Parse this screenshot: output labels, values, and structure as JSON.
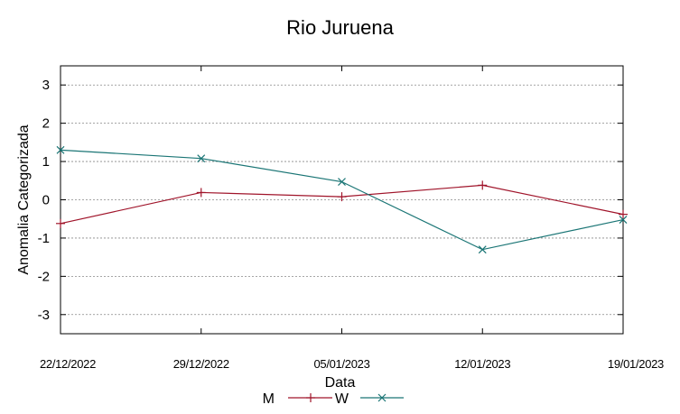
{
  "chart_data": {
    "type": "line",
    "title": "Rio Juruena",
    "xlabel": "Data",
    "ylabel": "Anomalia Categorizada",
    "categories": [
      "22/12/2022",
      "29/12/2022",
      "05/01/2023",
      "12/01/2023",
      "19/01/2023"
    ],
    "yticks": [
      "3",
      "2",
      "1",
      "0",
      "-1",
      "-2",
      "-3"
    ],
    "ylim": [
      -3.5,
      3.5
    ],
    "grid": true,
    "legend": "bottom-center",
    "series": [
      {
        "name": "M",
        "color": "#a0142a",
        "marker": "+",
        "values": [
          -0.62,
          0.19,
          0.08,
          0.38,
          -0.38
        ]
      },
      {
        "name": "W",
        "color": "#1a7575",
        "marker": "x",
        "values": [
          1.3,
          1.08,
          0.47,
          -1.3,
          -0.52
        ]
      }
    ]
  }
}
